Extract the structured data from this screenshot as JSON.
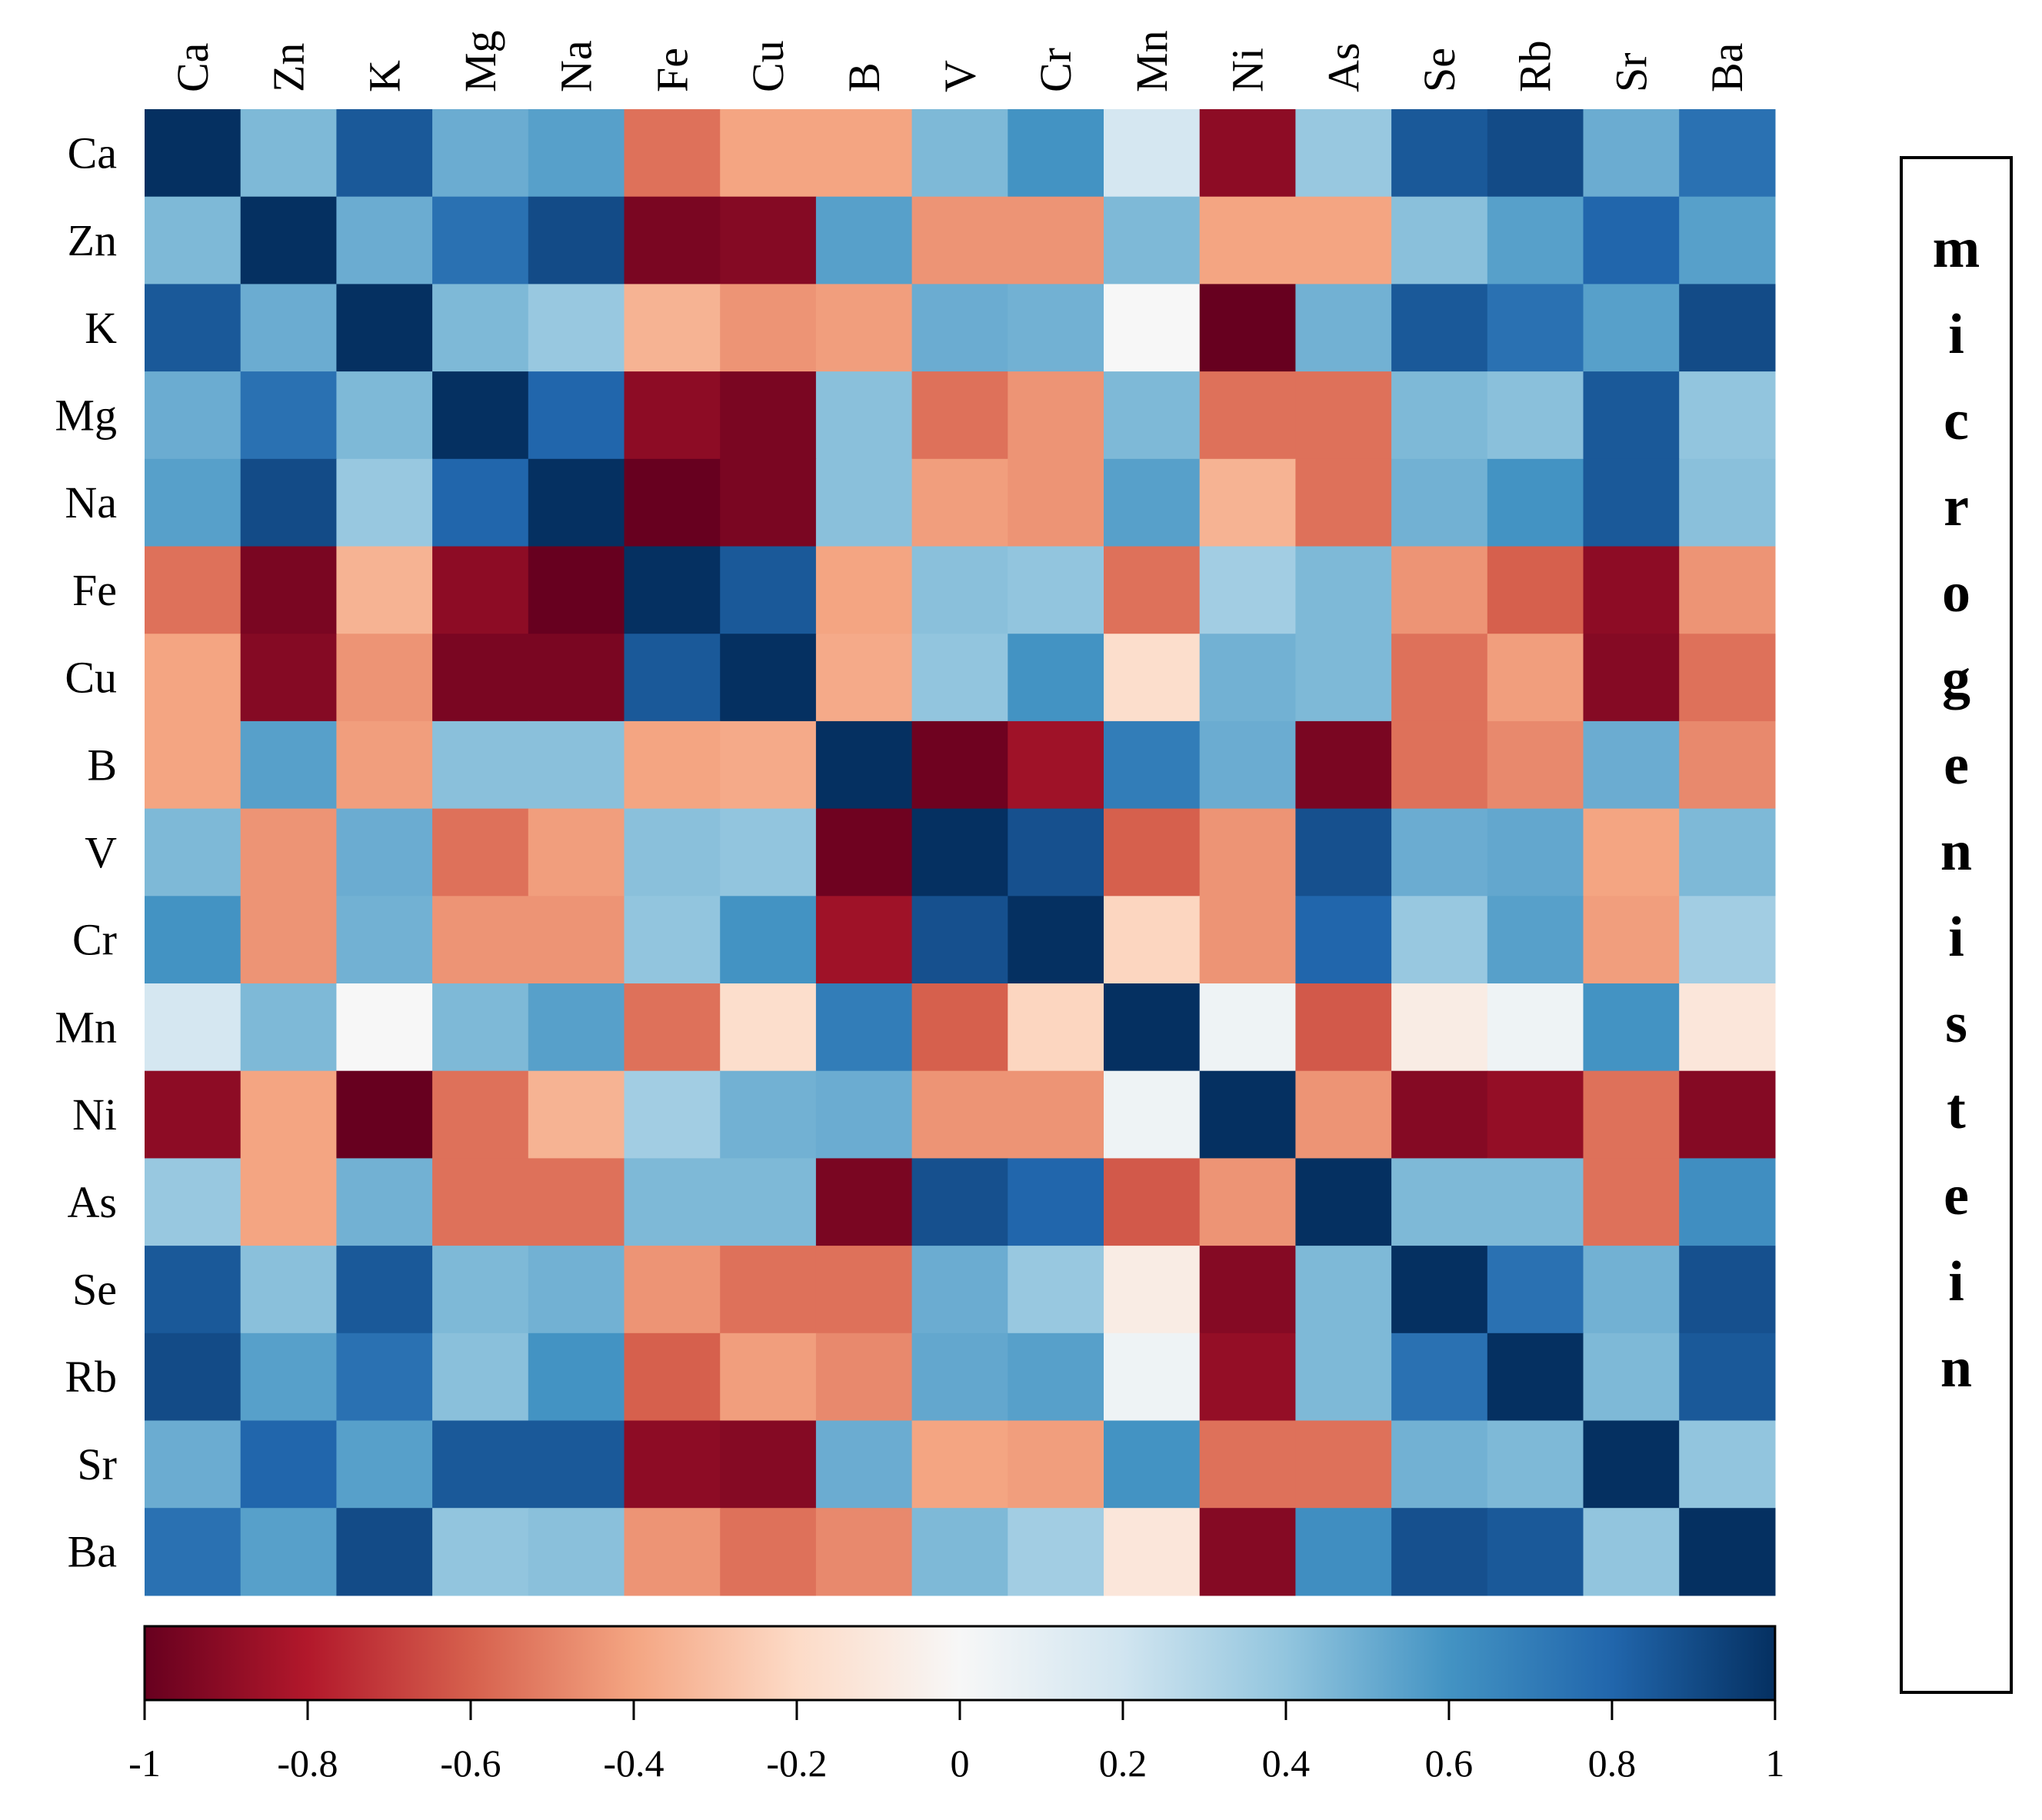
{
  "chart_data": {
    "type": "heatmap",
    "title": "",
    "side_label": "microgenistein",
    "row_labels": [
      "Ca",
      "Zn",
      "K",
      "Mg",
      "Na",
      "Fe",
      "Cu",
      "B",
      "V",
      "Cr",
      "Mn",
      "Ni",
      "As",
      "Se",
      "Rb",
      "Sr",
      "Ba"
    ],
    "col_labels": [
      "Ca",
      "Zn",
      "K",
      "Mg",
      "Na",
      "Fe",
      "Cu",
      "B",
      "V",
      "Cr",
      "Mn",
      "Ni",
      "As",
      "Se",
      "Rb",
      "Sr",
      "Ba"
    ],
    "values": [
      [
        1.0,
        0.45,
        0.85,
        0.5,
        0.55,
        -0.55,
        -0.4,
        -0.4,
        0.45,
        0.6,
        0.18,
        -0.9,
        0.38,
        0.85,
        0.9,
        0.5,
        0.75
      ],
      [
        0.45,
        1.0,
        0.5,
        0.75,
        0.9,
        -0.95,
        -0.92,
        0.55,
        -0.45,
        -0.45,
        0.45,
        -0.4,
        -0.4,
        0.42,
        0.55,
        0.8,
        0.55
      ],
      [
        0.85,
        0.5,
        1.0,
        0.45,
        0.38,
        -0.35,
        -0.45,
        -0.42,
        0.5,
        0.48,
        0.0,
        -1.0,
        0.48,
        0.85,
        0.75,
        0.55,
        0.9
      ],
      [
        0.5,
        0.75,
        0.45,
        1.0,
        0.8,
        -0.9,
        -0.95,
        0.42,
        -0.55,
        -0.45,
        0.45,
        -0.55,
        -0.55,
        0.45,
        0.42,
        0.85,
        0.4
      ],
      [
        0.55,
        0.9,
        0.38,
        0.8,
        1.0,
        -1.0,
        -0.95,
        0.42,
        -0.42,
        -0.45,
        0.55,
        -0.35,
        -0.55,
        0.48,
        0.6,
        0.85,
        0.42
      ],
      [
        -0.55,
        -0.95,
        -0.35,
        -0.9,
        -1.0,
        1.0,
        0.85,
        -0.4,
        0.42,
        0.4,
        -0.55,
        0.35,
        0.45,
        -0.45,
        -0.6,
        -0.9,
        -0.45
      ],
      [
        -0.4,
        -0.92,
        -0.45,
        -0.95,
        -0.95,
        0.85,
        1.0,
        -0.38,
        0.4,
        0.6,
        -0.18,
        0.48,
        0.45,
        -0.55,
        -0.42,
        -0.92,
        -0.55
      ],
      [
        -0.4,
        0.55,
        -0.42,
        0.42,
        0.42,
        -0.4,
        -0.38,
        1.0,
        -0.98,
        -0.85,
        0.7,
        0.5,
        -0.95,
        -0.55,
        -0.48,
        0.5,
        -0.48
      ],
      [
        0.45,
        -0.45,
        0.5,
        -0.55,
        -0.42,
        0.42,
        0.4,
        -0.98,
        1.0,
        0.88,
        -0.6,
        -0.45,
        0.88,
        0.5,
        0.52,
        -0.4,
        0.45
      ],
      [
        0.6,
        -0.45,
        0.48,
        -0.45,
        -0.45,
        0.4,
        0.6,
        -0.85,
        0.88,
        1.0,
        -0.22,
        -0.45,
        0.8,
        0.38,
        0.55,
        -0.42,
        0.35
      ],
      [
        0.18,
        0.45,
        0.0,
        0.45,
        0.55,
        -0.55,
        -0.18,
        0.7,
        -0.6,
        -0.22,
        1.0,
        0.05,
        -0.62,
        -0.08,
        0.05,
        0.6,
        -0.12
      ],
      [
        -0.9,
        -0.4,
        -1.0,
        -0.55,
        -0.35,
        0.35,
        0.48,
        0.5,
        -0.45,
        -0.45,
        0.05,
        1.0,
        -0.45,
        -0.92,
        -0.88,
        -0.55,
        -0.92
      ],
      [
        0.38,
        -0.4,
        0.48,
        -0.55,
        -0.55,
        0.45,
        0.45,
        -0.95,
        0.88,
        0.8,
        -0.62,
        -0.45,
        1.0,
        0.45,
        0.45,
        -0.55,
        0.62
      ],
      [
        0.85,
        0.42,
        0.85,
        0.45,
        0.48,
        -0.45,
        -0.55,
        -0.55,
        0.5,
        0.38,
        -0.08,
        -0.92,
        0.45,
        1.0,
        0.75,
        0.48,
        0.88
      ],
      [
        0.9,
        0.55,
        0.75,
        0.42,
        0.6,
        -0.6,
        -0.42,
        -0.48,
        0.52,
        0.55,
        0.05,
        -0.88,
        0.45,
        0.75,
        1.0,
        0.45,
        0.85
      ],
      [
        0.5,
        0.8,
        0.55,
        0.85,
        0.85,
        -0.9,
        -0.92,
        0.5,
        -0.4,
        -0.42,
        0.6,
        -0.55,
        -0.55,
        0.48,
        0.45,
        1.0,
        0.4
      ],
      [
        0.75,
        0.55,
        0.9,
        0.4,
        0.42,
        -0.45,
        -0.55,
        -0.48,
        0.45,
        0.35,
        -0.12,
        -0.92,
        0.62,
        0.88,
        0.85,
        0.4,
        1.0
      ]
    ],
    "colorbar": {
      "range": [
        -1,
        1
      ],
      "ticks": [
        -1,
        -0.8,
        -0.6,
        -0.4,
        -0.2,
        0,
        0.2,
        0.4,
        0.6,
        0.8,
        1
      ],
      "tick_labels": [
        "-1",
        "-0.8",
        "-0.6",
        "-0.4",
        "-0.2",
        "0",
        "0.2",
        "0.4",
        "0.6",
        "0.8",
        "1"
      ]
    },
    "colorscale": [
      "#67001f",
      "#b2182b",
      "#d6604d",
      "#f4a582",
      "#fddbc7",
      "#f7f7f7",
      "#d1e5f0",
      "#92c5de",
      "#4393c3",
      "#2166ac",
      "#053061"
    ]
  }
}
